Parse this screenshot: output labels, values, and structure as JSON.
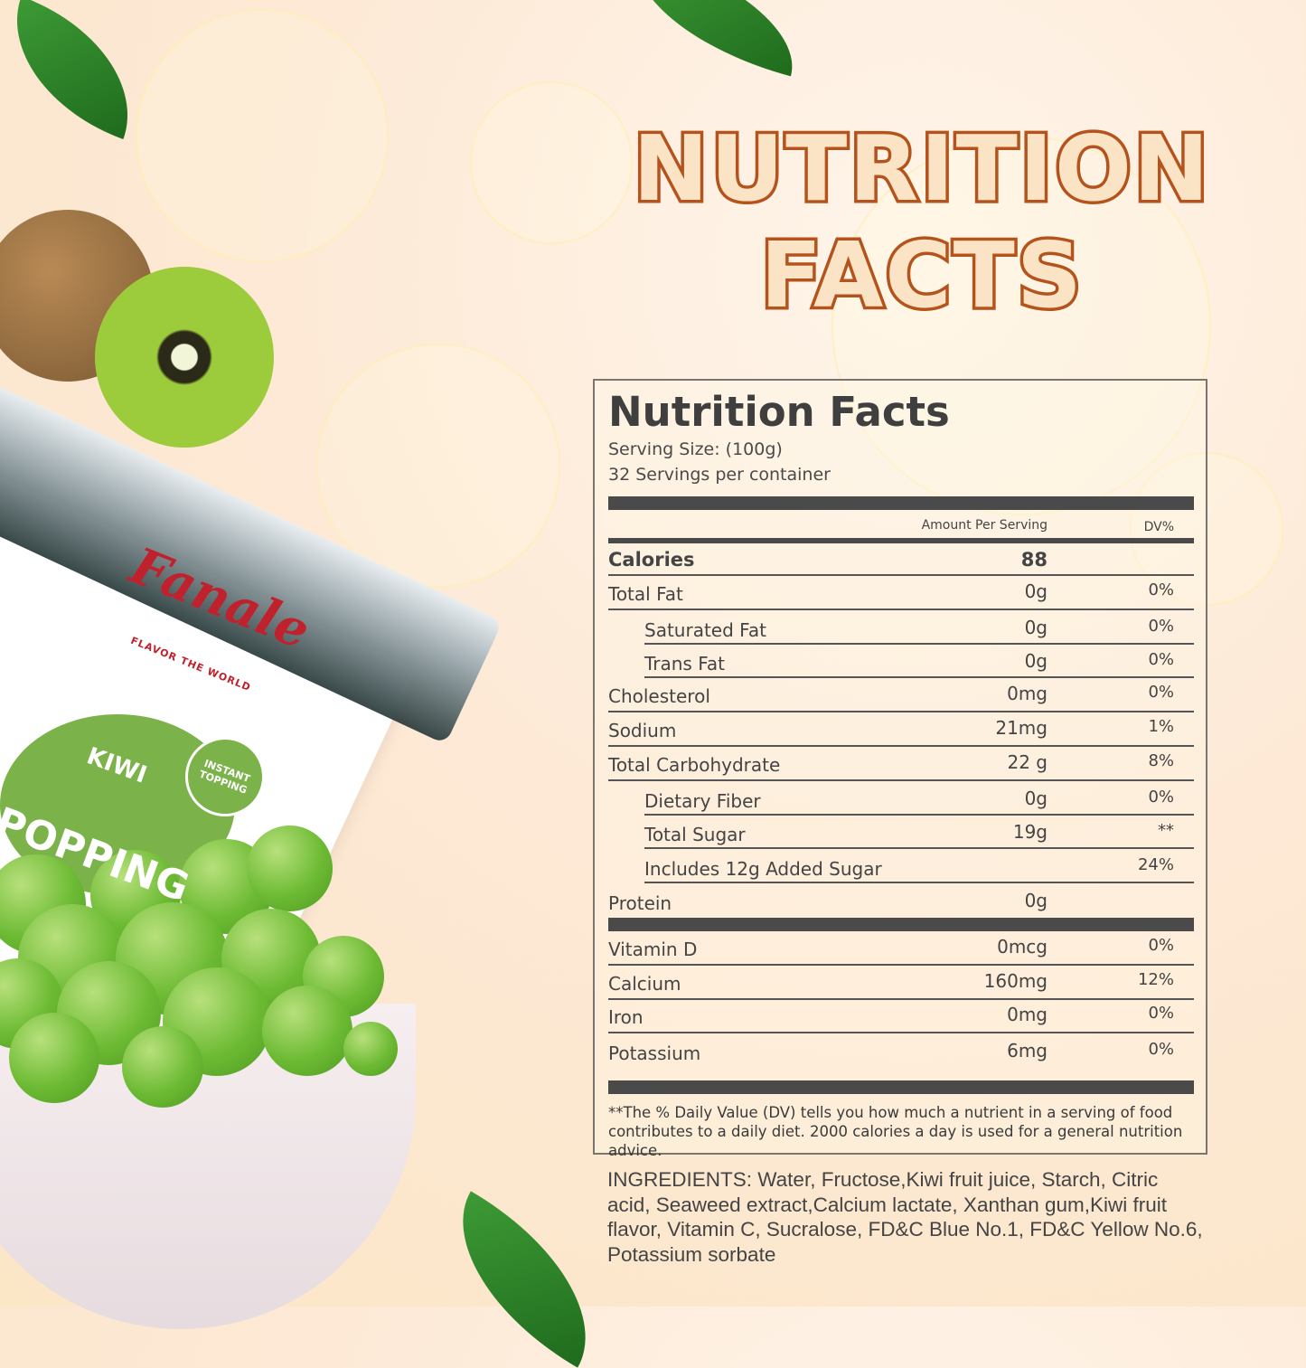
{
  "headline": [
    "NUTRITION",
    "FACTS"
  ],
  "product": {
    "brand": "Fanale",
    "tagline": "FLAVOR THE WORLD",
    "flavor": "KIWI",
    "name": "POPPING",
    "badge": "INSTANT TOPPING"
  },
  "label": {
    "title": "Nutrition Facts",
    "serving_size": "Serving Size:  (100g)",
    "servings": "32 Servings per container",
    "amount_header": "Amount Per Serving",
    "dv_header": "DV%",
    "calories": {
      "name": "Calories",
      "amount": "88"
    },
    "rows": [
      {
        "name": "Total Fat",
        "amount": "0g",
        "dv": "0%"
      },
      {
        "name": "Saturated Fat",
        "amount": "0g",
        "dv": "0%"
      },
      {
        "name": "Trans Fat",
        "amount": "0g",
        "dv": "0%"
      },
      {
        "name": "Cholesterol",
        "amount": "0mg",
        "dv": "0%"
      },
      {
        "name": "Sodium",
        "amount": "21mg",
        "dv": "1%"
      },
      {
        "name": "Total Carbohydrate",
        "amount": "22 g",
        "dv": "8%"
      },
      {
        "name": "Dietary Fiber",
        "amount": "0g",
        "dv": "0%"
      },
      {
        "name": "Total Sugar",
        "amount": "19g",
        "dv": "**"
      },
      {
        "name": "Includes 12g Added Sugar",
        "amount": "",
        "dv": "24%"
      },
      {
        "name": "Protein",
        "amount": "0g",
        "dv": ""
      }
    ],
    "vitamins": [
      {
        "name": "Vitamin D",
        "amount": "0mcg",
        "dv": "0%"
      },
      {
        "name": "Calcium",
        "amount": "160mg",
        "dv": "12%"
      },
      {
        "name": "Iron",
        "amount": "0mg",
        "dv": "0%"
      },
      {
        "name": "Potassium",
        "amount": "6mg",
        "dv": "0%"
      }
    ],
    "footnote": "**The % Daily Value (DV) tells you how much a nutrient in a serving of food contributes to a daily diet. 2000 calories a  day is used for a general nutrition advice."
  },
  "ingredients": "INGREDIENTS: Water, Fructose,Kiwi fruit juice, Starch, Citric acid, Seaweed extract,Calcium lactate, Xanthan gum,Kiwi fruit flavor, Vitamin C, Sucralose, FD&C Blue No.1, FD&C Yellow No.6, Potassium sorbate",
  "colors": {
    "title_stroke": "#b4531b",
    "bar": "#4a4a4a",
    "brand_red": "#c0222d",
    "kiwi_green": "#7bb24a"
  }
}
